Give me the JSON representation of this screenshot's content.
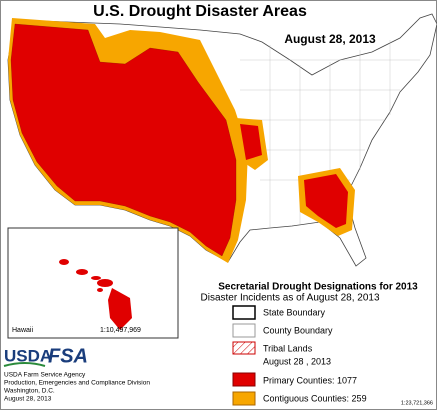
{
  "header": {
    "title": "U.S. Drought Disaster Areas",
    "date": "August 28, 2013"
  },
  "legend": {
    "title": "Secretarial Drought Designations for 2013",
    "subtitle": "Disaster Incidents as of August 28, 2013",
    "items": [
      {
        "label": "State Boundary"
      },
      {
        "label": "County Boundary"
      },
      {
        "label": "Tribal  Lands",
        "note": "August 28 , 2013"
      },
      {
        "label": "Primary Counties: 1077"
      },
      {
        "label": "Contiguous Counties: 259"
      }
    ]
  },
  "inset": {
    "label": "Hawaii",
    "scale": "1:10,497,969"
  },
  "logo": {
    "usda": "USDA",
    "fsa": "FSA"
  },
  "footer": {
    "lines": [
      "USDA Farm Service Agency",
      "Production, Emergencies and Compliance Division",
      "Washington, D.C.",
      "August 28, 2013"
    ]
  },
  "scale": "1:23,721,366"
}
